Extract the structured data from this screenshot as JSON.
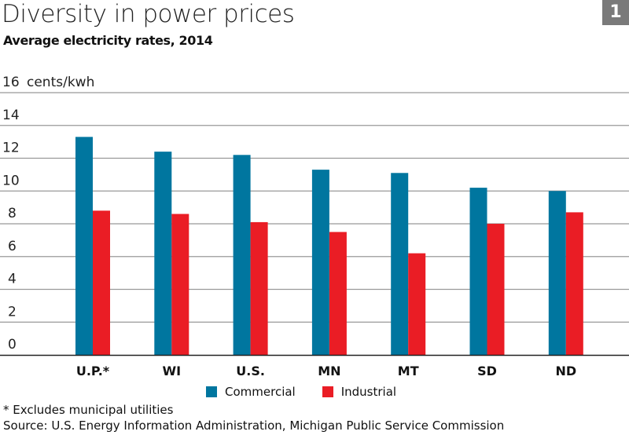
{
  "badge": "1",
  "chart_data": {
    "type": "bar",
    "title": "Diversity in power prices",
    "subtitle": "Average electricity rates, 2014",
    "ylabel": "cents/kwh",
    "ylim": [
      0,
      16
    ],
    "yticks": [
      0,
      2,
      4,
      6,
      8,
      10,
      12,
      14,
      16
    ],
    "grid": true,
    "legend_placement": "bottom",
    "categories": [
      "U.P.*",
      "WI",
      "U.S.",
      "MN",
      "MT",
      "SD",
      "ND"
    ],
    "series": [
      {
        "name": "Commercial",
        "color": "#00769f",
        "values": [
          13.3,
          12.4,
          12.2,
          11.3,
          11.1,
          10.2,
          10.0
        ]
      },
      {
        "name": "Industrial",
        "color": "#ea1d25",
        "values": [
          8.8,
          8.6,
          8.1,
          7.5,
          6.2,
          8.0,
          8.7
        ]
      }
    ]
  },
  "footnote": "* Excludes municipal utilities",
  "source": "Source: U.S. Energy Information Administration, Michigan Public Service Commission"
}
